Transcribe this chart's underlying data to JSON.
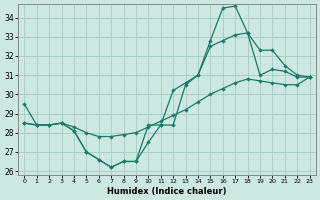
{
  "xlabel": "Humidex (Indice chaleur)",
  "bg_color": "#cce8e0",
  "grid_color": "#aacfc8",
  "line_color": "#1a7a6a",
  "xlim": [
    -0.5,
    23.5
  ],
  "ylim": [
    25.8,
    34.7
  ],
  "yticks": [
    26,
    27,
    28,
    29,
    30,
    31,
    32,
    33,
    34
  ],
  "xticks": [
    0,
    1,
    2,
    3,
    4,
    5,
    6,
    7,
    8,
    9,
    10,
    11,
    12,
    13,
    14,
    15,
    16,
    17,
    18,
    19,
    20,
    21,
    22,
    23
  ],
  "series1_x": [
    0,
    1,
    2,
    3,
    4,
    5,
    6,
    7,
    8,
    9,
    10,
    11,
    12,
    13,
    14,
    15,
    16,
    17,
    18,
    19,
    20,
    21,
    22,
    23
  ],
  "series1_y": [
    29.5,
    28.4,
    28.4,
    28.5,
    28.1,
    27.0,
    26.6,
    26.2,
    26.5,
    26.5,
    27.5,
    28.4,
    30.2,
    30.6,
    31.0,
    32.8,
    34.5,
    34.6,
    33.2,
    31.0,
    31.3,
    31.2,
    30.9,
    30.9
  ],
  "series2_x": [
    0,
    1,
    2,
    3,
    4,
    5,
    6,
    7,
    8,
    9,
    10,
    11,
    12,
    13,
    14,
    15,
    16,
    17,
    18,
    19,
    20,
    21,
    22,
    23
  ],
  "series2_y": [
    28.5,
    28.4,
    28.4,
    28.5,
    28.1,
    27.0,
    26.6,
    26.2,
    26.5,
    26.5,
    28.4,
    28.4,
    28.4,
    30.5,
    31.0,
    32.5,
    32.8,
    33.1,
    33.2,
    32.3,
    32.3,
    31.5,
    31.0,
    30.9
  ],
  "series3_x": [
    0,
    1,
    2,
    3,
    4,
    5,
    6,
    7,
    8,
    9,
    10,
    11,
    12,
    13,
    14,
    15,
    16,
    17,
    18,
    19,
    20,
    21,
    22,
    23
  ],
  "series3_y": [
    28.5,
    28.4,
    28.4,
    28.5,
    28.3,
    28.0,
    27.8,
    27.8,
    27.9,
    28.0,
    28.3,
    28.6,
    28.9,
    29.2,
    29.6,
    30.0,
    30.3,
    30.6,
    30.8,
    30.7,
    30.6,
    30.5,
    30.5,
    30.9
  ]
}
